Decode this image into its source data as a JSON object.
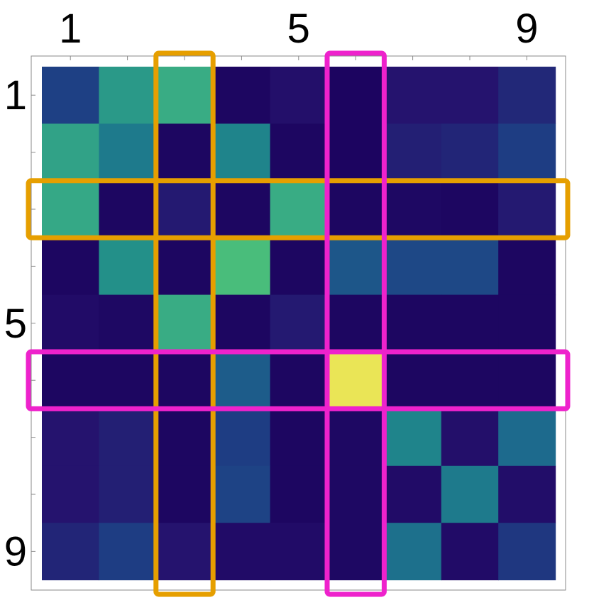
{
  "chart_data": {
    "type": "heatmap",
    "title": "",
    "xlabel": "",
    "ylabel": "",
    "colormap": "viridis",
    "x_tick_labels": [
      {
        "index": 1,
        "label": "1"
      },
      {
        "index": 5,
        "label": "5"
      },
      {
        "index": 9,
        "label": "9"
      }
    ],
    "y_tick_labels": [
      {
        "index": 1,
        "label": "1"
      },
      {
        "index": 5,
        "label": "5"
      },
      {
        "index": 9,
        "label": "9"
      }
    ],
    "values": [
      [
        0.25,
        0.55,
        0.62,
        0.03,
        0.08,
        0.02,
        0.1,
        0.1,
        0.17
      ],
      [
        0.58,
        0.45,
        0.03,
        0.48,
        0.03,
        0.02,
        0.14,
        0.16,
        0.24
      ],
      [
        0.6,
        0.03,
        0.12,
        0.03,
        0.62,
        0.03,
        0.04,
        0.03,
        0.12
      ],
      [
        0.03,
        0.52,
        0.03,
        0.7,
        0.03,
        0.33,
        0.28,
        0.28,
        0.03
      ],
      [
        0.06,
        0.04,
        0.62,
        0.03,
        0.12,
        0.03,
        0.03,
        0.03,
        0.03
      ],
      [
        0.03,
        0.03,
        0.03,
        0.35,
        0.03,
        1.0,
        0.03,
        0.03,
        0.03
      ],
      [
        0.1,
        0.14,
        0.03,
        0.24,
        0.03,
        0.04,
        0.48,
        0.08,
        0.4
      ],
      [
        0.1,
        0.14,
        0.03,
        0.26,
        0.03,
        0.04,
        0.06,
        0.45,
        0.07
      ],
      [
        0.16,
        0.24,
        0.1,
        0.06,
        0.06,
        0.04,
        0.42,
        0.06,
        0.22
      ]
    ],
    "highlights": [
      {
        "kind": "column",
        "index": 3,
        "color": "#e69f00"
      },
      {
        "kind": "row",
        "index": 3,
        "color": "#e69f00"
      },
      {
        "kind": "column",
        "index": 6,
        "color": "#ee22cc"
      },
      {
        "kind": "row",
        "index": 6,
        "color": "#ee22cc"
      }
    ]
  }
}
